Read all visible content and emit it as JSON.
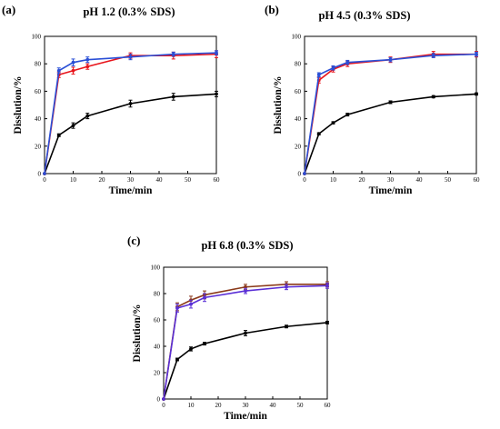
{
  "chart_data": [
    {
      "type": "line",
      "panel_label": "(a)",
      "title": "pH 1.2 (0.3% SDS)",
      "xlabel": "Time/min",
      "ylabel": "Disslution/%",
      "xlim": [
        0,
        60
      ],
      "ylim": [
        0,
        100
      ],
      "xticks": [
        0,
        10,
        20,
        30,
        40,
        50,
        60
      ],
      "yticks": [
        0,
        20,
        40,
        60,
        80,
        100
      ],
      "grid": false,
      "legend": "none",
      "x": [
        0,
        5,
        10,
        15,
        30,
        45,
        60
      ],
      "series": [
        {
          "color": "#000000",
          "values": [
            0,
            28,
            35,
            42,
            51,
            56,
            58
          ],
          "errors": [
            0,
            1,
            2,
            2,
            2.5,
            2.5,
            2
          ]
        },
        {
          "color": "#e8141b",
          "values": [
            0,
            72,
            75,
            78,
            86,
            86,
            87
          ],
          "errors": [
            0,
            2,
            2.5,
            2,
            2,
            2.5,
            2.5
          ]
        },
        {
          "color": "#2a4fd6",
          "values": [
            0,
            75,
            81,
            83,
            85,
            87,
            88
          ],
          "errors": [
            0,
            2,
            2.5,
            2,
            2,
            1.5,
            1.5
          ]
        }
      ]
    },
    {
      "type": "line",
      "panel_label": "(b)",
      "title": "pH 4.5 (0.3% SDS)",
      "xlabel": "Time/min",
      "ylabel": "Disslution/%",
      "xlim": [
        0,
        60
      ],
      "ylim": [
        0,
        100
      ],
      "xticks": [
        0,
        10,
        20,
        30,
        40,
        50,
        60
      ],
      "yticks": [
        0,
        20,
        40,
        60,
        80,
        100
      ],
      "grid": false,
      "legend": "none",
      "x": [
        0,
        5,
        10,
        15,
        30,
        45,
        60
      ],
      "series": [
        {
          "color": "#000000",
          "values": [
            0,
            29,
            37,
            43,
            52,
            56,
            58
          ],
          "errors": [
            0,
            0.8,
            0.8,
            1,
            1,
            0.8,
            0.8
          ]
        },
        {
          "color": "#e8141b",
          "values": [
            0,
            68,
            76,
            80,
            83,
            87,
            87
          ],
          "errors": [
            0,
            2,
            2,
            2,
            2,
            2,
            2
          ]
        },
        {
          "color": "#2a4fd6",
          "values": [
            0,
            72,
            77,
            81,
            83,
            86,
            87
          ],
          "errors": [
            0,
            1.5,
            1.5,
            1.5,
            1.5,
            1.5,
            1.5
          ]
        }
      ]
    },
    {
      "type": "line",
      "panel_label": "(c)",
      "title": "pH 6.8 (0.3% SDS)",
      "xlabel": "Time/min",
      "ylabel": "Disslution/%",
      "xlim": [
        0,
        60
      ],
      "ylim": [
        0,
        100
      ],
      "xticks": [
        0,
        10,
        20,
        30,
        40,
        50,
        60
      ],
      "yticks": [
        0,
        20,
        40,
        60,
        80,
        100
      ],
      "grid": false,
      "legend": "none",
      "x": [
        0,
        5,
        10,
        15,
        30,
        45,
        60
      ],
      "series": [
        {
          "color": "#000000",
          "values": [
            0,
            30,
            38,
            42,
            50,
            55,
            58
          ],
          "errors": [
            0,
            1,
            1.5,
            1,
            2,
            1,
            1
          ]
        },
        {
          "color": "#8b3a1a",
          "values": [
            0,
            70,
            75,
            79,
            85,
            87,
            87
          ],
          "errors": [
            0,
            3,
            3,
            3,
            2,
            2,
            2
          ]
        },
        {
          "color": "#5a2fd6",
          "values": [
            0,
            69,
            72,
            77,
            82,
            85,
            86
          ],
          "errors": [
            0,
            3,
            3,
            3,
            2,
            2,
            2
          ]
        }
      ]
    }
  ]
}
